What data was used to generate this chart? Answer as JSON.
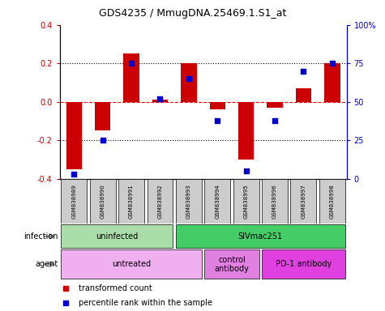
{
  "title": "GDS4235 / MmugDNA.25469.1.S1_at",
  "samples": [
    "GSM838989",
    "GSM838990",
    "GSM838991",
    "GSM838992",
    "GSM838993",
    "GSM838994",
    "GSM838995",
    "GSM838996",
    "GSM838997",
    "GSM838998"
  ],
  "transformed_count": [
    -0.35,
    -0.15,
    0.25,
    0.01,
    0.2,
    -0.04,
    -0.3,
    -0.03,
    0.07,
    0.2
  ],
  "percentile_rank": [
    3,
    25,
    75,
    52,
    65,
    38,
    5,
    38,
    70,
    75
  ],
  "ylim_left": [
    -0.4,
    0.4
  ],
  "yticks_left": [
    -0.4,
    -0.2,
    0.0,
    0.2,
    0.4
  ],
  "ylim_right": [
    0,
    100
  ],
  "yticks_right": [
    0,
    25,
    50,
    75,
    100
  ],
  "bar_color": "#cc0000",
  "scatter_color": "#0000cc",
  "inf_groups": [
    {
      "label": "uninfected",
      "start": 0,
      "end": 3,
      "color": "#aaddaa"
    },
    {
      "label": "SIVmac251",
      "start": 4,
      "end": 9,
      "color": "#44cc66"
    }
  ],
  "agent_groups": [
    {
      "label": "untreated",
      "start": 0,
      "end": 4,
      "color": "#f0b0f0"
    },
    {
      "label": "control\nantibody",
      "start": 5,
      "end": 6,
      "color": "#e080e0"
    },
    {
      "label": "PD-1 antibody",
      "start": 7,
      "end": 9,
      "color": "#e040e0"
    }
  ],
  "row_label_infection": "infection",
  "row_label_agent": "agent",
  "legend_tc": "transformed count",
  "legend_pr": "percentile rank within the sample",
  "bar_color_legend": "#cc0000",
  "scatter_color_legend": "#0000cc",
  "bg_color": "#ffffff",
  "sample_bg_color": "#cccccc",
  "title_fontsize": 9,
  "tick_fontsize": 7,
  "label_fontsize": 7,
  "bar_width": 0.55
}
